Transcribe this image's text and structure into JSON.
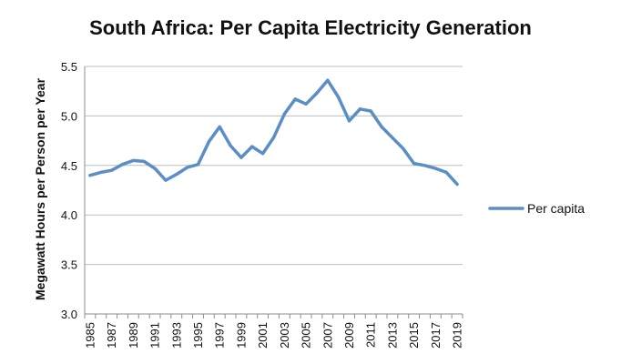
{
  "chart_data": {
    "type": "line",
    "title": "South Africa: Per Capita Electricity Generation",
    "xlabel": "",
    "ylabel": "Megawatt Hours per Person per Year",
    "ylim": [
      3.0,
      5.5
    ],
    "yticks": [
      "3.0",
      "3.5",
      "4.0",
      "4.5",
      "5.0",
      "5.5"
    ],
    "xticks": [
      "1985",
      "1987",
      "1989",
      "1991",
      "1993",
      "1995",
      "1997",
      "1999",
      "2001",
      "2003",
      "2005",
      "2007",
      "2009",
      "2011",
      "2013",
      "2015",
      "2017",
      "2019"
    ],
    "grid": "horizontal",
    "legend": "right",
    "series_color": "#5b8ec6",
    "x": [
      1985,
      1986,
      1987,
      1988,
      1989,
      1990,
      1991,
      1992,
      1993,
      1994,
      1995,
      1996,
      1997,
      1998,
      1999,
      2000,
      2001,
      2002,
      2003,
      2004,
      2005,
      2006,
      2007,
      2008,
      2009,
      2010,
      2011,
      2012,
      2013,
      2014,
      2015,
      2016,
      2017,
      2018,
      2019
    ],
    "series": [
      {
        "name": "Per capita",
        "values": [
          4.4,
          4.43,
          4.45,
          4.51,
          4.55,
          4.54,
          4.47,
          4.35,
          4.41,
          4.48,
          4.51,
          4.74,
          4.89,
          4.7,
          4.58,
          4.69,
          4.62,
          4.78,
          5.02,
          5.17,
          5.12,
          5.23,
          5.36,
          5.19,
          4.95,
          5.07,
          5.05,
          4.89,
          4.78,
          4.67,
          4.52,
          4.5,
          4.47,
          4.43,
          4.31
        ]
      }
    ]
  }
}
